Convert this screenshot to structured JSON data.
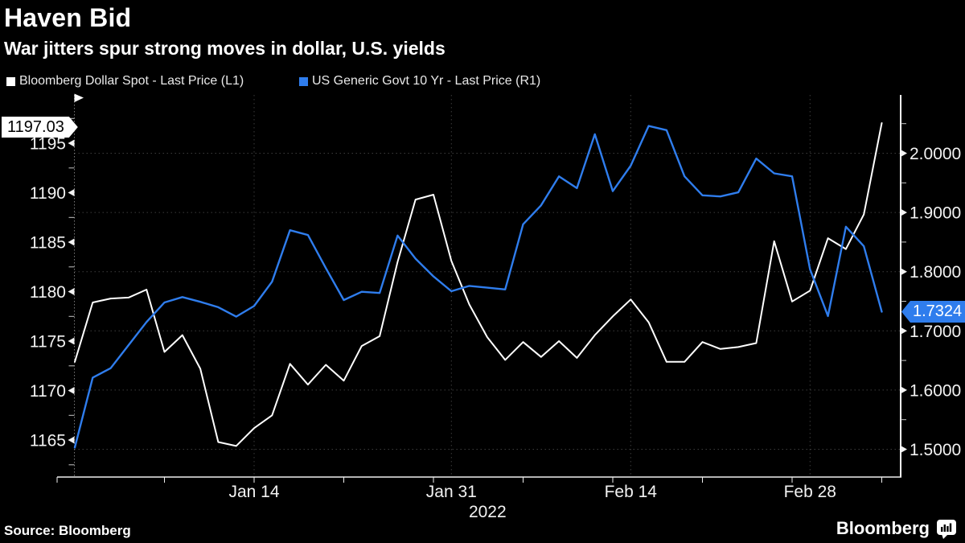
{
  "header": {
    "title": "Haven Bid",
    "subtitle": "War jitters spur strong moves in dollar, U.S. yields"
  },
  "legend": [
    {
      "swatch_color": "#ffffff",
      "label": "Bloomberg Dollar Spot - Last Price (L1)"
    },
    {
      "swatch_color": "#2f7ded",
      "label": "US Generic Govt 10 Yr - Last Price (R1)"
    }
  ],
  "badges": {
    "dollar_last": "1197.03",
    "yield_last": "1.7324"
  },
  "footer": {
    "source": "Source: Bloomberg",
    "brand": "Bloomberg"
  },
  "colors": {
    "background": "#000000",
    "dollar_line": "#ffffff",
    "yield_line": "#2f7ded",
    "grid": "#3d3d3d",
    "axis_label": "#f2f2f2",
    "badge_dollar_bg": "#ffffff",
    "badge_yield_bg": "#2f7ded"
  },
  "chart_data": {
    "type": "line",
    "title": "Haven Bid",
    "subtitle": "War jitters spur strong moves in dollar, U.S. yields",
    "legend_position": "top-left",
    "grid": {
      "horizontal": "at_right_axis_ticks",
      "vertical": "at_labeled_dates",
      "style": "dotted"
    },
    "x_axis": {
      "year_label": "2022",
      "tick_labels": [
        {
          "label": "Jan 14",
          "index": 10
        },
        {
          "label": "Jan 31",
          "index": 21
        },
        {
          "label": "Feb 14",
          "index": 31
        },
        {
          "label": "Feb 28",
          "index": 41
        }
      ],
      "weekly_tick_indices": [
        5,
        10,
        15,
        20,
        25,
        30,
        35,
        40,
        45
      ]
    },
    "left_axis": {
      "series": "Bloomberg Dollar Spot",
      "ticks": [
        1195,
        1190,
        1185,
        1180,
        1175,
        1170,
        1165
      ],
      "minor_ticks": [
        1197.5,
        1192.5,
        1187.5,
        1182.5,
        1177.5,
        1172.5,
        1167.5,
        1162.5
      ],
      "last_price": 1197.03
    },
    "right_axis": {
      "series": "US Generic Govt 10 Yr",
      "ticks": [
        2.0,
        1.9,
        1.8,
        1.7,
        1.6,
        1.5
      ],
      "tick_decimals": 4,
      "minor_ticks": [
        2.05,
        1.95,
        1.85,
        1.75,
        1.65,
        1.55
      ],
      "last_price": 1.7324
    },
    "dates": [
      "2021-12-31",
      "2022-01-03",
      "2022-01-04",
      "2022-01-05",
      "2022-01-06",
      "2022-01-07",
      "2022-01-10",
      "2022-01-11",
      "2022-01-12",
      "2022-01-13",
      "2022-01-14",
      "2022-01-17",
      "2022-01-18",
      "2022-01-19",
      "2022-01-20",
      "2022-01-21",
      "2022-01-24",
      "2022-01-25",
      "2022-01-26",
      "2022-01-27",
      "2022-01-28",
      "2022-01-31",
      "2022-02-01",
      "2022-02-02",
      "2022-02-03",
      "2022-02-04",
      "2022-02-07",
      "2022-02-08",
      "2022-02-09",
      "2022-02-10",
      "2022-02-11",
      "2022-02-14",
      "2022-02-15",
      "2022-02-16",
      "2022-02-17",
      "2022-02-18",
      "2022-02-21",
      "2022-02-22",
      "2022-02-23",
      "2022-02-24",
      "2022-02-25",
      "2022-02-28",
      "2022-03-01",
      "2022-03-02",
      "2022-03-03",
      "2022-03-04"
    ],
    "series": [
      {
        "name": "Bloomberg Dollar Spot - Last Price (L1)",
        "axis": "L1",
        "color": "#ffffff",
        "values": [
          1172.9,
          1178.9,
          1179.3,
          1179.4,
          1180.2,
          1173.9,
          1175.6,
          1172.2,
          1164.8,
          1164.4,
          1166.2,
          1167.5,
          1172.7,
          1170.6,
          1172.6,
          1171.0,
          1174.5,
          1175.5,
          1183.0,
          1189.3,
          1189.8,
          1183.1,
          1178.7,
          1175.4,
          1173.1,
          1174.9,
          1173.4,
          1175.0,
          1173.3,
          1175.6,
          1177.5,
          1179.2,
          1176.9,
          1172.9,
          1172.9,
          1174.9,
          1174.2,
          1174.4,
          1174.8,
          1185.1,
          1179.0,
          1180.1,
          1185.4,
          1184.3,
          1187.8,
          1197.03
        ]
      },
      {
        "name": "US Generic Govt 10 Yr - Last Price (R1)",
        "axis": "R1",
        "color": "#2f7ded",
        "values": [
          1.503,
          1.621,
          1.637,
          1.676,
          1.715,
          1.748,
          1.757,
          1.749,
          1.74,
          1.724,
          1.742,
          1.783,
          1.87,
          1.862,
          1.806,
          1.752,
          1.766,
          1.764,
          1.861,
          1.822,
          1.792,
          1.767,
          1.776,
          1.773,
          1.77,
          1.88,
          1.912,
          1.961,
          1.941,
          2.032,
          1.936,
          1.979,
          2.046,
          2.039,
          1.961,
          1.929,
          1.927,
          1.934,
          1.991,
          1.966,
          1.961,
          1.804,
          1.725,
          1.876,
          1.843,
          1.7324
        ]
      }
    ]
  }
}
